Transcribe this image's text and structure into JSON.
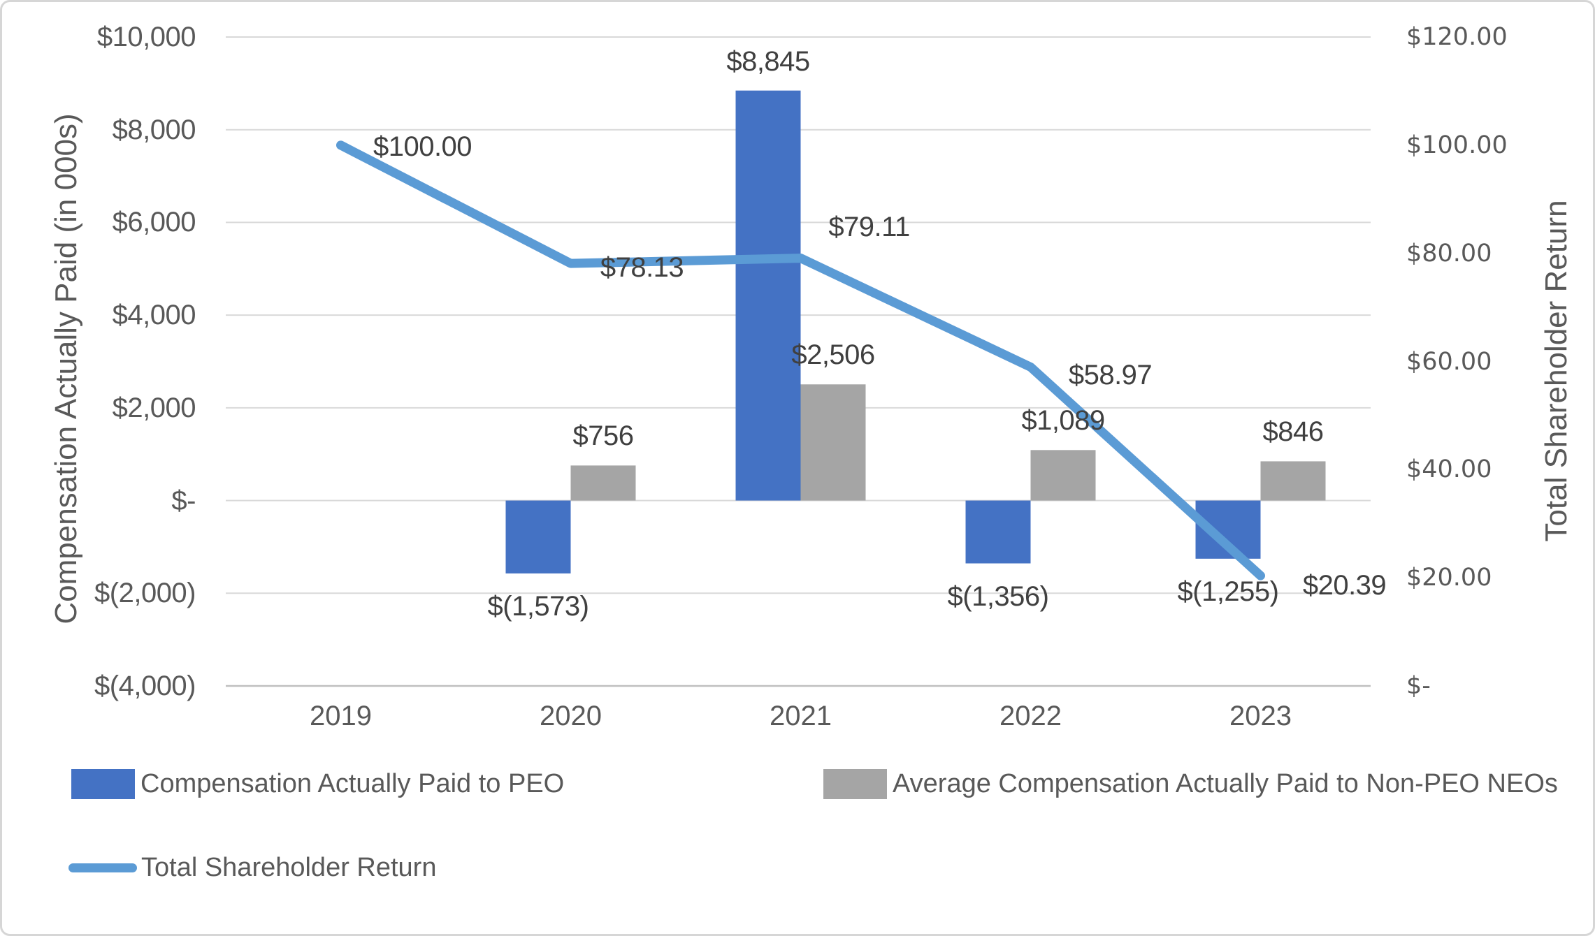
{
  "colors": {
    "peo_bar": "#4472C4",
    "neo_bar": "#A5A5A5",
    "tsr_line": "#5B9BD5",
    "gridline": "#D9D9D9",
    "axis_line": "#BFBFBF",
    "tick_text": "#595959",
    "data_label_text": "#404040"
  },
  "chart_data": {
    "type": "combo-bar-line",
    "title": "",
    "grid": true,
    "legend_position": "bottom",
    "categories": [
      "2019",
      "2020",
      "2021",
      "2022",
      "2023"
    ],
    "series": [
      {
        "name": "Compensation Actually Paid to PEO",
        "type": "bar",
        "axis": "left",
        "color": "#4472C4",
        "values": [
          null,
          -1573,
          8845,
          -1356,
          -1255
        ],
        "labels": [
          "",
          "$(1,573)",
          "$8,845",
          "$(1,356)",
          "$(1,255)"
        ]
      },
      {
        "name": "Average Compensation Actually Paid to Non-PEO NEOs",
        "type": "bar",
        "axis": "left",
        "color": "#A5A5A5",
        "values": [
          null,
          756,
          2506,
          1089,
          846
        ],
        "labels": [
          "",
          "$756",
          "$2,506",
          "$1,089",
          "$846"
        ]
      },
      {
        "name": "Total Shareholder Return",
        "type": "line",
        "axis": "right",
        "color": "#5B9BD5",
        "values": [
          100.0,
          78.13,
          79.11,
          58.97,
          20.39
        ],
        "labels": [
          "$100.00",
          "$78.13",
          "$79.11",
          "$58.97",
          "$20.39"
        ]
      }
    ],
    "left_axis": {
      "title": "Compensation Actually Paid (in 000s)",
      "min": -4000,
      "max": 10000,
      "ticks": [
        {
          "value": 10000,
          "label": "$10,000"
        },
        {
          "value": 8000,
          "label": "$8,000"
        },
        {
          "value": 6000,
          "label": "$6,000"
        },
        {
          "value": 4000,
          "label": "$4,000"
        },
        {
          "value": 2000,
          "label": "$2,000"
        },
        {
          "value": 0,
          "label": "$-"
        },
        {
          "value": -2000,
          "label": "$(2,000)"
        },
        {
          "value": -4000,
          "label": "$(4,000)"
        }
      ]
    },
    "right_axis": {
      "title": "Total Shareholder Return",
      "min": 0,
      "max": 120,
      "ticks": [
        {
          "value": 120,
          "label": "$120.00"
        },
        {
          "value": 100,
          "label": "$100.00"
        },
        {
          "value": 80,
          "label": "$80.00"
        },
        {
          "value": 60,
          "label": "$60.00"
        },
        {
          "value": 40,
          "label": "$40.00"
        },
        {
          "value": 20,
          "label": "$20.00"
        },
        {
          "value": 0,
          "label": "$-"
        }
      ]
    }
  }
}
